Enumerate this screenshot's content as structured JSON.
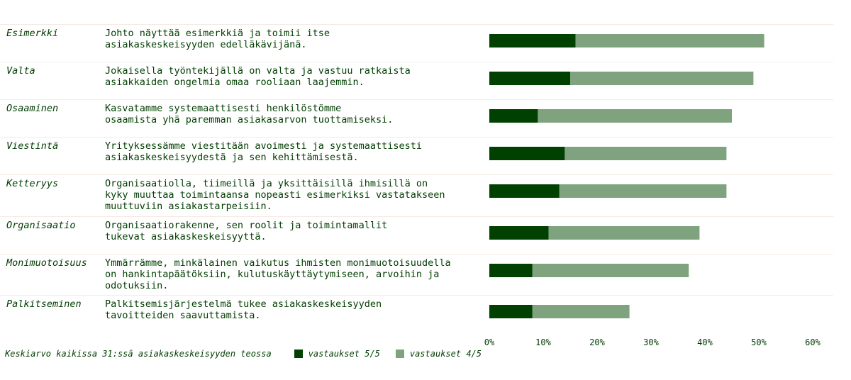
{
  "chart_data": {
    "type": "bar",
    "orientation": "horizontal",
    "stacked": true,
    "categories": [
      "Esimerkki",
      "Valta",
      "Osaaminen",
      "Viestintä",
      "Ketteryys",
      "Organisaatio",
      "Monimuotoisuus",
      "Palkitseminen"
    ],
    "descriptions": [
      "Johto näyttää esimerkkiä ja toimii itse\nasiakaskeskeisyyden edelläkävijänä.",
      "Jokaisella työntekijällä on valta ja vastuu ratkaista\nasiakkaiden ongelmia omaa rooliaan laajemmin.",
      "Kasvatamme systemaattisesti henkilöstömme\nosaamista yhä paremman asiakasarvon tuottamiseksi.",
      "Yrityksessämme viestitään avoimesti ja systemaattisesti\nasiakaskeskeisyydestä ja sen kehittämisestä.",
      "Organisaatiolla, tiimeillä ja yksittäisillä ihmisillä on\nkyky muuttaa toimintaansa nopeasti esimerkiksi vastatakseen\nmuuttuviin asiakastarpeisiin.",
      "Organisaatiorakenne, sen roolit ja toimintamallit\ntukevat asiakaskeskeisyyttä.",
      "Ymmärrämme, minkälainen vaikutus ihmisten monimuotoisuudella\non hankintapäätöksiin, kulutuskäyttäytymiseen, arvoihin ja\nodotuksiin.",
      "Palkitsemisjärjestelmä tukee asiakaskeskeisyyden\ntavoitteiden saavuttamista."
    ],
    "series": [
      {
        "name": "vastaukset 5/5",
        "color": "#004000",
        "values": [
          16,
          15,
          9,
          14,
          13,
          11,
          8,
          8
        ]
      },
      {
        "name": "vastaukset 4/5",
        "color": "#7ea37e",
        "values": [
          35,
          34,
          36,
          30,
          31,
          28,
          29,
          18
        ]
      }
    ],
    "xlim": [
      0,
      60
    ],
    "xticks": [
      "0%",
      "10%",
      "20%",
      "30%",
      "40%",
      "50%",
      "60%"
    ],
    "tick_values": [
      0,
      10,
      20,
      30,
      40,
      50,
      60
    ],
    "legend_placement": "bottom-left",
    "note": "Keskiarvo kaikissa 31:ssä asiakaskeskeisyyden teossa"
  }
}
